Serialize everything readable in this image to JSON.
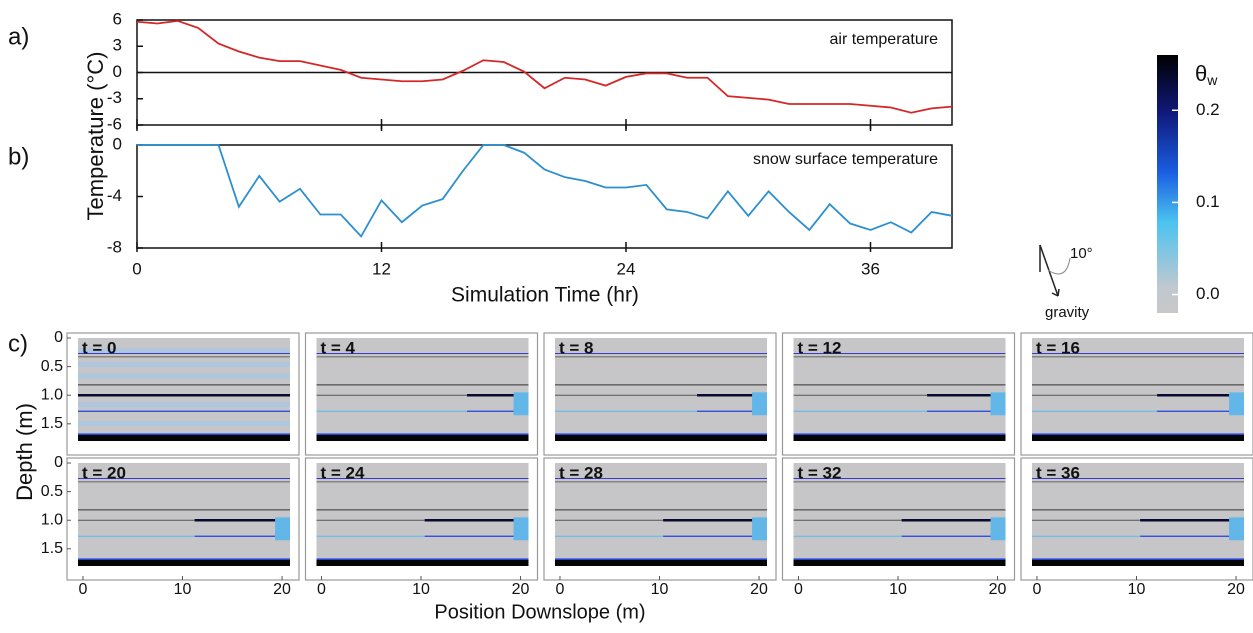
{
  "chart_data": [
    {
      "type": "line",
      "panel_label": "a)",
      "annotation": "air temperature",
      "ylabel": "Temperature  (°C)",
      "x": [
        0,
        1,
        2,
        3,
        4,
        5,
        6,
        7,
        8,
        9,
        10,
        11,
        12,
        13,
        14,
        15,
        16,
        17,
        18,
        19,
        20,
        21,
        22,
        23,
        24,
        25,
        26,
        27,
        28,
        29,
        30,
        31,
        32,
        33,
        34,
        35,
        36,
        37,
        38,
        39,
        40
      ],
      "values": [
        5.8,
        5.6,
        5.9,
        5.1,
        3.3,
        2.4,
        1.7,
        1.3,
        1.3,
        0.8,
        0.3,
        -0.6,
        -0.8,
        -1.0,
        -1.0,
        -0.8,
        0.2,
        1.4,
        1.2,
        0.1,
        -1.8,
        -0.6,
        -0.8,
        -1.5,
        -0.5,
        -0.1,
        -0.1,
        -0.6,
        -0.6,
        -2.7,
        -2.9,
        -3.1,
        -3.6,
        -3.6,
        -3.6,
        -3.6,
        -3.8,
        -4.0,
        -4.6,
        -4.1,
        -3.9
      ],
      "color": "#d62728",
      "hline": 0,
      "xlim": [
        0,
        40
      ],
      "xticks": [
        0,
        12,
        24,
        36
      ],
      "ylim": [
        -6,
        6
      ],
      "yticks": [
        -6,
        -3,
        0,
        3,
        6
      ]
    },
    {
      "type": "line",
      "panel_label": "b)",
      "annotation": "snow surface temperature",
      "xlabel": "Simulation Time (hr)",
      "x": [
        0,
        1,
        2,
        3,
        4,
        5,
        6,
        7,
        8,
        9,
        10,
        11,
        12,
        13,
        14,
        15,
        16,
        17,
        18,
        19,
        20,
        21,
        22,
        23,
        24,
        25,
        26,
        27,
        28,
        29,
        30,
        31,
        32,
        33,
        34,
        35,
        36,
        37,
        38,
        39,
        40
      ],
      "values": [
        0,
        0,
        0,
        0,
        0,
        -4.8,
        -2.4,
        -4.4,
        -3.4,
        -5.4,
        -5.4,
        -7.1,
        -4.3,
        -6.0,
        -4.7,
        -4.2,
        -2.0,
        0,
        0,
        -0.6,
        -1.9,
        -2.5,
        -2.8,
        -3.3,
        -3.3,
        -3.1,
        -5.0,
        -5.2,
        -5.7,
        -3.6,
        -5.5,
        -3.6,
        -5.2,
        -6.6,
        -4.6,
        -6.1,
        -6.6,
        -6.0,
        -6.8,
        -5.2,
        -5.5
      ],
      "color": "#2b8fd0",
      "xlim": [
        0,
        40
      ],
      "xticks": [
        0,
        12,
        24,
        36
      ],
      "ylim": [
        -8,
        0
      ],
      "yticks": [
        -8,
        -4,
        0
      ]
    },
    {
      "type": "heatmap-grid",
      "panel_label": "c)",
      "titles": [
        "t = 0",
        "t = 4",
        "t = 8",
        "t = 12",
        "t = 16",
        "t = 20",
        "t = 24",
        "t = 28",
        "t = 32",
        "t = 36"
      ],
      "xlabel": "Position Downslope  (m)",
      "ylabel": "Depth (m)",
      "xlim": [
        -0.5,
        20.8
      ],
      "xticks": [
        0,
        10,
        20
      ],
      "ylim": [
        0,
        1.8
      ],
      "yticks": [
        0,
        0.5,
        {
          "value": 1.0,
          "label": "1.0"
        },
        1.5
      ]
    },
    {
      "type": "colorbar",
      "label_symbol": "θ",
      "label_subscript": "w",
      "clim": [
        -0.02,
        0.26
      ],
      "ticks": [
        {
          "value": 0,
          "label": "0.0"
        },
        0.1,
        0.2
      ]
    }
  ],
  "diagram": {
    "angle_label": "10°",
    "arrow_label": "gravity"
  }
}
